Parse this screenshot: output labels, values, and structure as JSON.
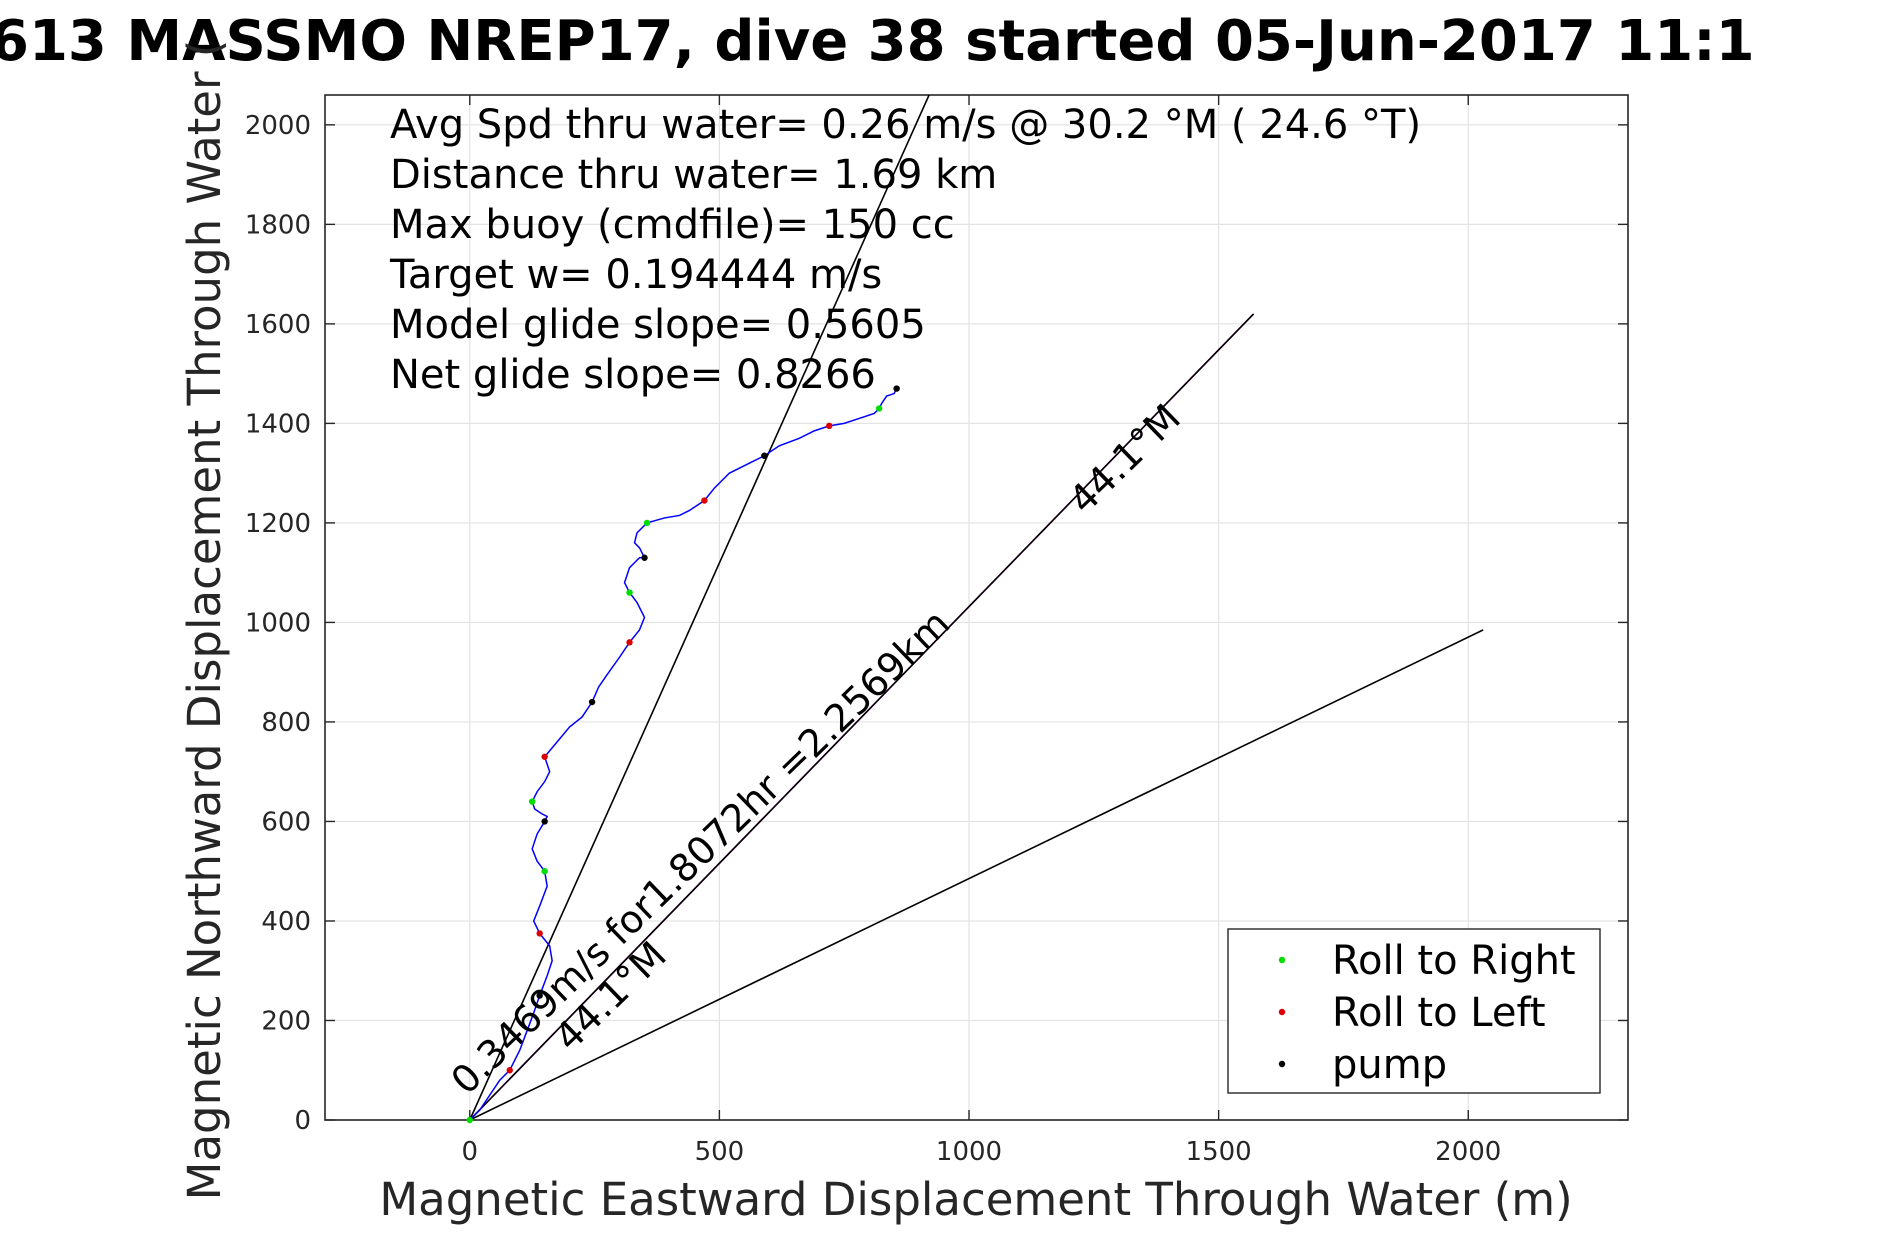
{
  "chart_data": {
    "type": "line",
    "title": "613 MASSMO NREP17, dive 38 started 05-Jun-2017 11:1",
    "xlabel": "Magnetic Eastward Displacement Through Water (m)",
    "ylabel": "Magnetic Northward Displacement Through Water (",
    "xlim": [
      -290,
      2320
    ],
    "ylim": [
      0,
      2060
    ],
    "xticks": [
      0,
      500,
      1000,
      1500,
      2000
    ],
    "yticks": [
      0,
      200,
      400,
      600,
      800,
      1000,
      1200,
      1400,
      1600,
      1800,
      2000
    ],
    "grid": true,
    "legend_position": "bottom-right",
    "info_lines": [
      "Avg Spd thru water=  0.26 m/s @  30.2 °M ( 24.6 °T)",
      "Distance thru water=  1.69 km",
      "Max buoy (cmdfile)= 150 cc",
      "Target w= 0.194444 m/s",
      "Model glide slope= 0.5605",
      "Net glide slope= 0.8266"
    ],
    "annotations": [
      {
        "text": "0.3469m/s for1.8072hr =2.2569km",
        "x": 480,
        "y": 520,
        "angle_deg": 44.1
      },
      {
        "text": "44.1°M",
        "x": 1330,
        "y": 1310,
        "angle_deg": 44.1
      },
      {
        "text": "44.1°M",
        "x": 300,
        "y": 230,
        "angle_deg": 44.1
      }
    ],
    "reference_lines": [
      {
        "name": "",
        "color": "#000000",
        "x": [
          0,
          920
        ],
        "y": [
          0,
          2060
        ]
      },
      {
        "name": "",
        "color": "#000000",
        "x": [
          0,
          2030
        ],
        "y": [
          0,
          985
        ]
      },
      {
        "name": "",
        "color": "#cc00cc",
        "x": [
          0,
          1570
        ],
        "y": [
          0,
          1620
        ]
      },
      {
        "name": "",
        "color": "#000000",
        "x": [
          0,
          1570
        ],
        "y": [
          0,
          1620
        ]
      }
    ],
    "series": [
      {
        "name": "",
        "color": "#0000ff",
        "x": [
          0,
          20,
          40,
          60,
          80,
          100,
          115,
          128,
          140,
          155,
          165,
          160,
          140,
          128,
          140,
          155,
          150,
          135,
          125,
          135,
          150,
          155,
          145,
          130,
          125,
          135,
          150,
          160,
          150,
          175,
          200,
          225,
          245,
          258,
          275,
          300,
          320,
          340,
          350,
          335,
          320,
          310,
          320,
          340,
          350,
          340,
          330,
          335,
          355,
          390,
          420,
          440,
          470,
          490,
          520,
          560,
          590,
          620,
          660,
          690,
          720,
          750,
          780,
          810,
          820,
          825,
          835,
          850,
          855
        ],
        "y": [
          0,
          20,
          50,
          80,
          100,
          140,
          180,
          215,
          250,
          290,
          320,
          350,
          375,
          400,
          430,
          470,
          500,
          520,
          545,
          575,
          600,
          610,
          615,
          625,
          640,
          660,
          680,
          700,
          730,
          760,
          790,
          810,
          840,
          870,
          895,
          930,
          960,
          985,
          1010,
          1040,
          1060,
          1080,
          1110,
          1130,
          1130,
          1150,
          1160,
          1180,
          1200,
          1210,
          1215,
          1225,
          1245,
          1270,
          1300,
          1320,
          1335,
          1355,
          1370,
          1385,
          1395,
          1400,
          1410,
          1420,
          1430,
          1440,
          1455,
          1460,
          1470
        ]
      }
    ],
    "markers": [
      {
        "name": "Roll to Right",
        "color": "#00dd00"
      },
      {
        "name": "Roll to Left",
        "color": "#dd0000"
      },
      {
        "name": "pump",
        "color": "#000000"
      }
    ]
  }
}
